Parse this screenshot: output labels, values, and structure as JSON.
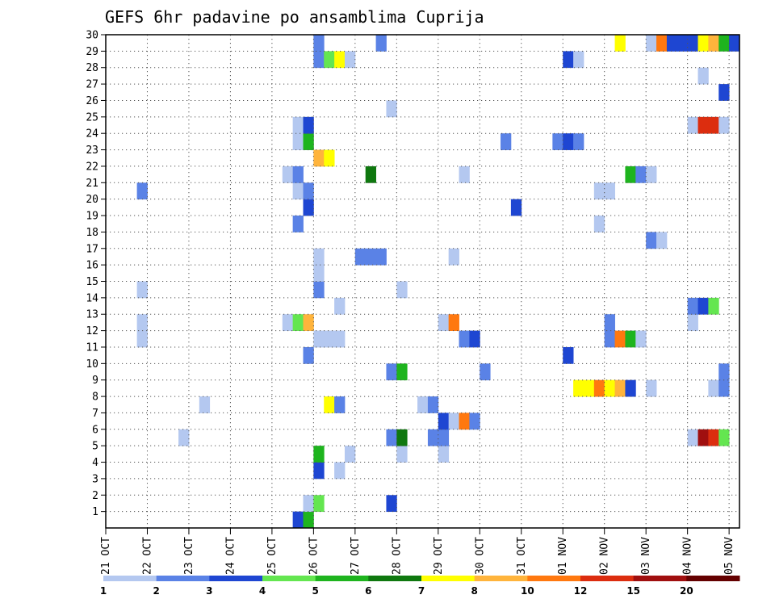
{
  "chart_data": {
    "type": "heatmap",
    "title": "GEFS 6hr padavine po ansamblima Cuprija",
    "y_tick_labels": [
      "1",
      "2",
      "3",
      "4",
      "5",
      "6",
      "7",
      "8",
      "9",
      "10",
      "11",
      "12",
      "13",
      "14",
      "15",
      "16",
      "17",
      "18",
      "19",
      "20",
      "21",
      "22",
      "23",
      "24",
      "25",
      "26",
      "27",
      "28",
      "29",
      "30"
    ],
    "x_tick_labels": [
      "21 OCT",
      "22 OCT",
      "23 OCT",
      "24 OCT",
      "25 OCT",
      "26 OCT",
      "27 OCT",
      "28 OCT",
      "29 OCT",
      "30 OCT",
      "31 OCT",
      "01 NOV",
      "02 NOV",
      "03 NOV",
      "04 NOV",
      "05 NOV"
    ],
    "x_range_steps": 61,
    "y_range": [
      0,
      30
    ],
    "grid": true,
    "colorbar": {
      "labels": [
        "1",
        "2",
        "3",
        "4",
        "5",
        "6",
        "7",
        "8",
        "10",
        "12",
        "15",
        "20"
      ],
      "colors": [
        "#b4c8f0",
        "#5a82e6",
        "#1e46d2",
        "#64e650",
        "#1eb41e",
        "#0f780f",
        "#ffff00",
        "#ffb43c",
        "#ff780f",
        "#dc2d0f",
        "#a00f0f",
        "#640000"
      ]
    },
    "cells": [
      {
        "step": 19,
        "member": 0,
        "c": 2
      },
      {
        "step": 20,
        "member": 0,
        "c": 4
      },
      {
        "step": 20,
        "member": 1,
        "c": 0
      },
      {
        "step": 21,
        "member": 1,
        "c": 3
      },
      {
        "step": 28,
        "member": 1,
        "c": 2
      },
      {
        "step": 21,
        "member": 3,
        "c": 2
      },
      {
        "step": 23,
        "member": 3,
        "c": 0
      },
      {
        "step": 21,
        "member": 4,
        "c": 4
      },
      {
        "step": 24,
        "member": 4,
        "c": 0
      },
      {
        "step": 29,
        "member": 4,
        "c": 0
      },
      {
        "step": 33,
        "member": 4,
        "c": 0
      },
      {
        "step": 8,
        "member": 5,
        "c": 0
      },
      {
        "step": 28,
        "member": 5,
        "c": 1
      },
      {
        "step": 29,
        "member": 5,
        "c": 5
      },
      {
        "step": 32,
        "member": 5,
        "c": 1
      },
      {
        "step": 33,
        "member": 5,
        "c": 1
      },
      {
        "step": 57,
        "member": 5,
        "c": 0
      },
      {
        "step": 58,
        "member": 5,
        "c": 10
      },
      {
        "step": 59,
        "member": 5,
        "c": 9
      },
      {
        "step": 60,
        "member": 5,
        "c": 3
      },
      {
        "step": 33,
        "member": 6,
        "c": 2
      },
      {
        "step": 34,
        "member": 6,
        "c": 0
      },
      {
        "step": 35,
        "member": 6,
        "c": 8
      },
      {
        "step": 36,
        "member": 6,
        "c": 1
      },
      {
        "step": 10,
        "member": 7,
        "c": 0
      },
      {
        "step": 22,
        "member": 7,
        "c": 6
      },
      {
        "step": 23,
        "member": 7,
        "c": 1
      },
      {
        "step": 31,
        "member": 7,
        "c": 0
      },
      {
        "step": 32,
        "member": 7,
        "c": 1
      },
      {
        "step": 46,
        "member": 8,
        "c": 6
      },
      {
        "step": 47,
        "member": 8,
        "c": 6
      },
      {
        "step": 48,
        "member": 8,
        "c": 8
      },
      {
        "step": 49,
        "member": 8,
        "c": 6
      },
      {
        "step": 50,
        "member": 8,
        "c": 7
      },
      {
        "step": 51,
        "member": 8,
        "c": 2
      },
      {
        "step": 53,
        "member": 8,
        "c": 0
      },
      {
        "step": 59,
        "member": 8,
        "c": 0
      },
      {
        "step": 60,
        "member": 8,
        "c": 1
      },
      {
        "step": 28,
        "member": 9,
        "c": 1
      },
      {
        "step": 29,
        "member": 9,
        "c": 4
      },
      {
        "step": 37,
        "member": 9,
        "c": 1
      },
      {
        "step": 60,
        "member": 9,
        "c": 1
      },
      {
        "step": 20,
        "member": 10,
        "c": 1
      },
      {
        "step": 45,
        "member": 10,
        "c": 2
      },
      {
        "step": 4,
        "member": 11,
        "c": 0
      },
      {
        "step": 21,
        "member": 11,
        "c": 0
      },
      {
        "step": 22,
        "member": 11,
        "c": 0
      },
      {
        "step": 23,
        "member": 11,
        "c": 0
      },
      {
        "step": 35,
        "member": 11,
        "c": 1
      },
      {
        "step": 36,
        "member": 11,
        "c": 2
      },
      {
        "step": 49,
        "member": 11,
        "c": 1
      },
      {
        "step": 50,
        "member": 11,
        "c": 8
      },
      {
        "step": 51,
        "member": 11,
        "c": 4
      },
      {
        "step": 52,
        "member": 11,
        "c": 0
      },
      {
        "step": 4,
        "member": 12,
        "c": 0
      },
      {
        "step": 18,
        "member": 12,
        "c": 0
      },
      {
        "step": 19,
        "member": 12,
        "c": 3
      },
      {
        "step": 20,
        "member": 12,
        "c": 7
      },
      {
        "step": 33,
        "member": 12,
        "c": 0
      },
      {
        "step": 34,
        "member": 12,
        "c": 8
      },
      {
        "step": 49,
        "member": 12,
        "c": 1
      },
      {
        "step": 57,
        "member": 12,
        "c": 0
      },
      {
        "step": 23,
        "member": 13,
        "c": 0
      },
      {
        "step": 57,
        "member": 13,
        "c": 1
      },
      {
        "step": 58,
        "member": 13,
        "c": 2
      },
      {
        "step": 59,
        "member": 13,
        "c": 3
      },
      {
        "step": 4,
        "member": 14,
        "c": 0
      },
      {
        "step": 21,
        "member": 14,
        "c": 1
      },
      {
        "step": 29,
        "member": 14,
        "c": 0
      },
      {
        "step": 21,
        "member": 15,
        "c": 0
      },
      {
        "step": 21,
        "member": 16,
        "c": 0
      },
      {
        "step": 25,
        "member": 16,
        "c": 1
      },
      {
        "step": 26,
        "member": 16,
        "c": 1
      },
      {
        "step": 27,
        "member": 16,
        "c": 1
      },
      {
        "step": 34,
        "member": 16,
        "c": 0
      },
      {
        "step": 53,
        "member": 17,
        "c": 1
      },
      {
        "step": 54,
        "member": 17,
        "c": 0
      },
      {
        "step": 19,
        "member": 18,
        "c": 1
      },
      {
        "step": 48,
        "member": 18,
        "c": 0
      },
      {
        "step": 20,
        "member": 19,
        "c": 2
      },
      {
        "step": 40,
        "member": 19,
        "c": 2
      },
      {
        "step": 4,
        "member": 20,
        "c": 1
      },
      {
        "step": 19,
        "member": 20,
        "c": 0
      },
      {
        "step": 20,
        "member": 20,
        "c": 1
      },
      {
        "step": 48,
        "member": 20,
        "c": 0
      },
      {
        "step": 49,
        "member": 20,
        "c": 0
      },
      {
        "step": 18,
        "member": 21,
        "c": 0
      },
      {
        "step": 19,
        "member": 21,
        "c": 1
      },
      {
        "step": 26,
        "member": 21,
        "c": 5
      },
      {
        "step": 35,
        "member": 21,
        "c": 0
      },
      {
        "step": 51,
        "member": 21,
        "c": 4
      },
      {
        "step": 52,
        "member": 21,
        "c": 1
      },
      {
        "step": 53,
        "member": 21,
        "c": 0
      },
      {
        "step": 21,
        "member": 22,
        "c": 7
      },
      {
        "step": 22,
        "member": 22,
        "c": 6
      },
      {
        "step": 19,
        "member": 23,
        "c": 0
      },
      {
        "step": 20,
        "member": 23,
        "c": 4
      },
      {
        "step": 39,
        "member": 23,
        "c": 1
      },
      {
        "step": 44,
        "member": 23,
        "c": 1
      },
      {
        "step": 45,
        "member": 23,
        "c": 2
      },
      {
        "step": 46,
        "member": 23,
        "c": 1
      },
      {
        "step": 19,
        "member": 24,
        "c": 0
      },
      {
        "step": 20,
        "member": 24,
        "c": 2
      },
      {
        "step": 57,
        "member": 24,
        "c": 0
      },
      {
        "step": 58,
        "member": 24,
        "c": 9
      },
      {
        "step": 59,
        "member": 24,
        "c": 9
      },
      {
        "step": 60,
        "member": 24,
        "c": 0
      },
      {
        "step": 28,
        "member": 25,
        "c": 0
      },
      {
        "step": 60,
        "member": 26,
        "c": 2
      },
      {
        "step": 58,
        "member": 27,
        "c": 0
      },
      {
        "step": 21,
        "member": 28,
        "c": 1
      },
      {
        "step": 22,
        "member": 28,
        "c": 3
      },
      {
        "step": 23,
        "member": 28,
        "c": 6
      },
      {
        "step": 24,
        "member": 28,
        "c": 0
      },
      {
        "step": 45,
        "member": 28,
        "c": 2
      },
      {
        "step": 46,
        "member": 28,
        "c": 0
      },
      {
        "step": 21,
        "member": 29,
        "c": 1
      },
      {
        "step": 27,
        "member": 29,
        "c": 1
      },
      {
        "step": 50,
        "member": 29,
        "c": 6
      },
      {
        "step": 53,
        "member": 29,
        "c": 0
      },
      {
        "step": 54,
        "member": 29,
        "c": 8
      },
      {
        "step": 55,
        "member": 29,
        "c": 2
      },
      {
        "step": 56,
        "member": 29,
        "c": 2
      },
      {
        "step": 57,
        "member": 29,
        "c": 2
      },
      {
        "step": 58,
        "member": 29,
        "c": 6
      },
      {
        "step": 59,
        "member": 29,
        "c": 7
      },
      {
        "step": 60,
        "member": 29,
        "c": 4
      },
      {
        "step": 61,
        "member": 29,
        "c": 2
      }
    ]
  }
}
